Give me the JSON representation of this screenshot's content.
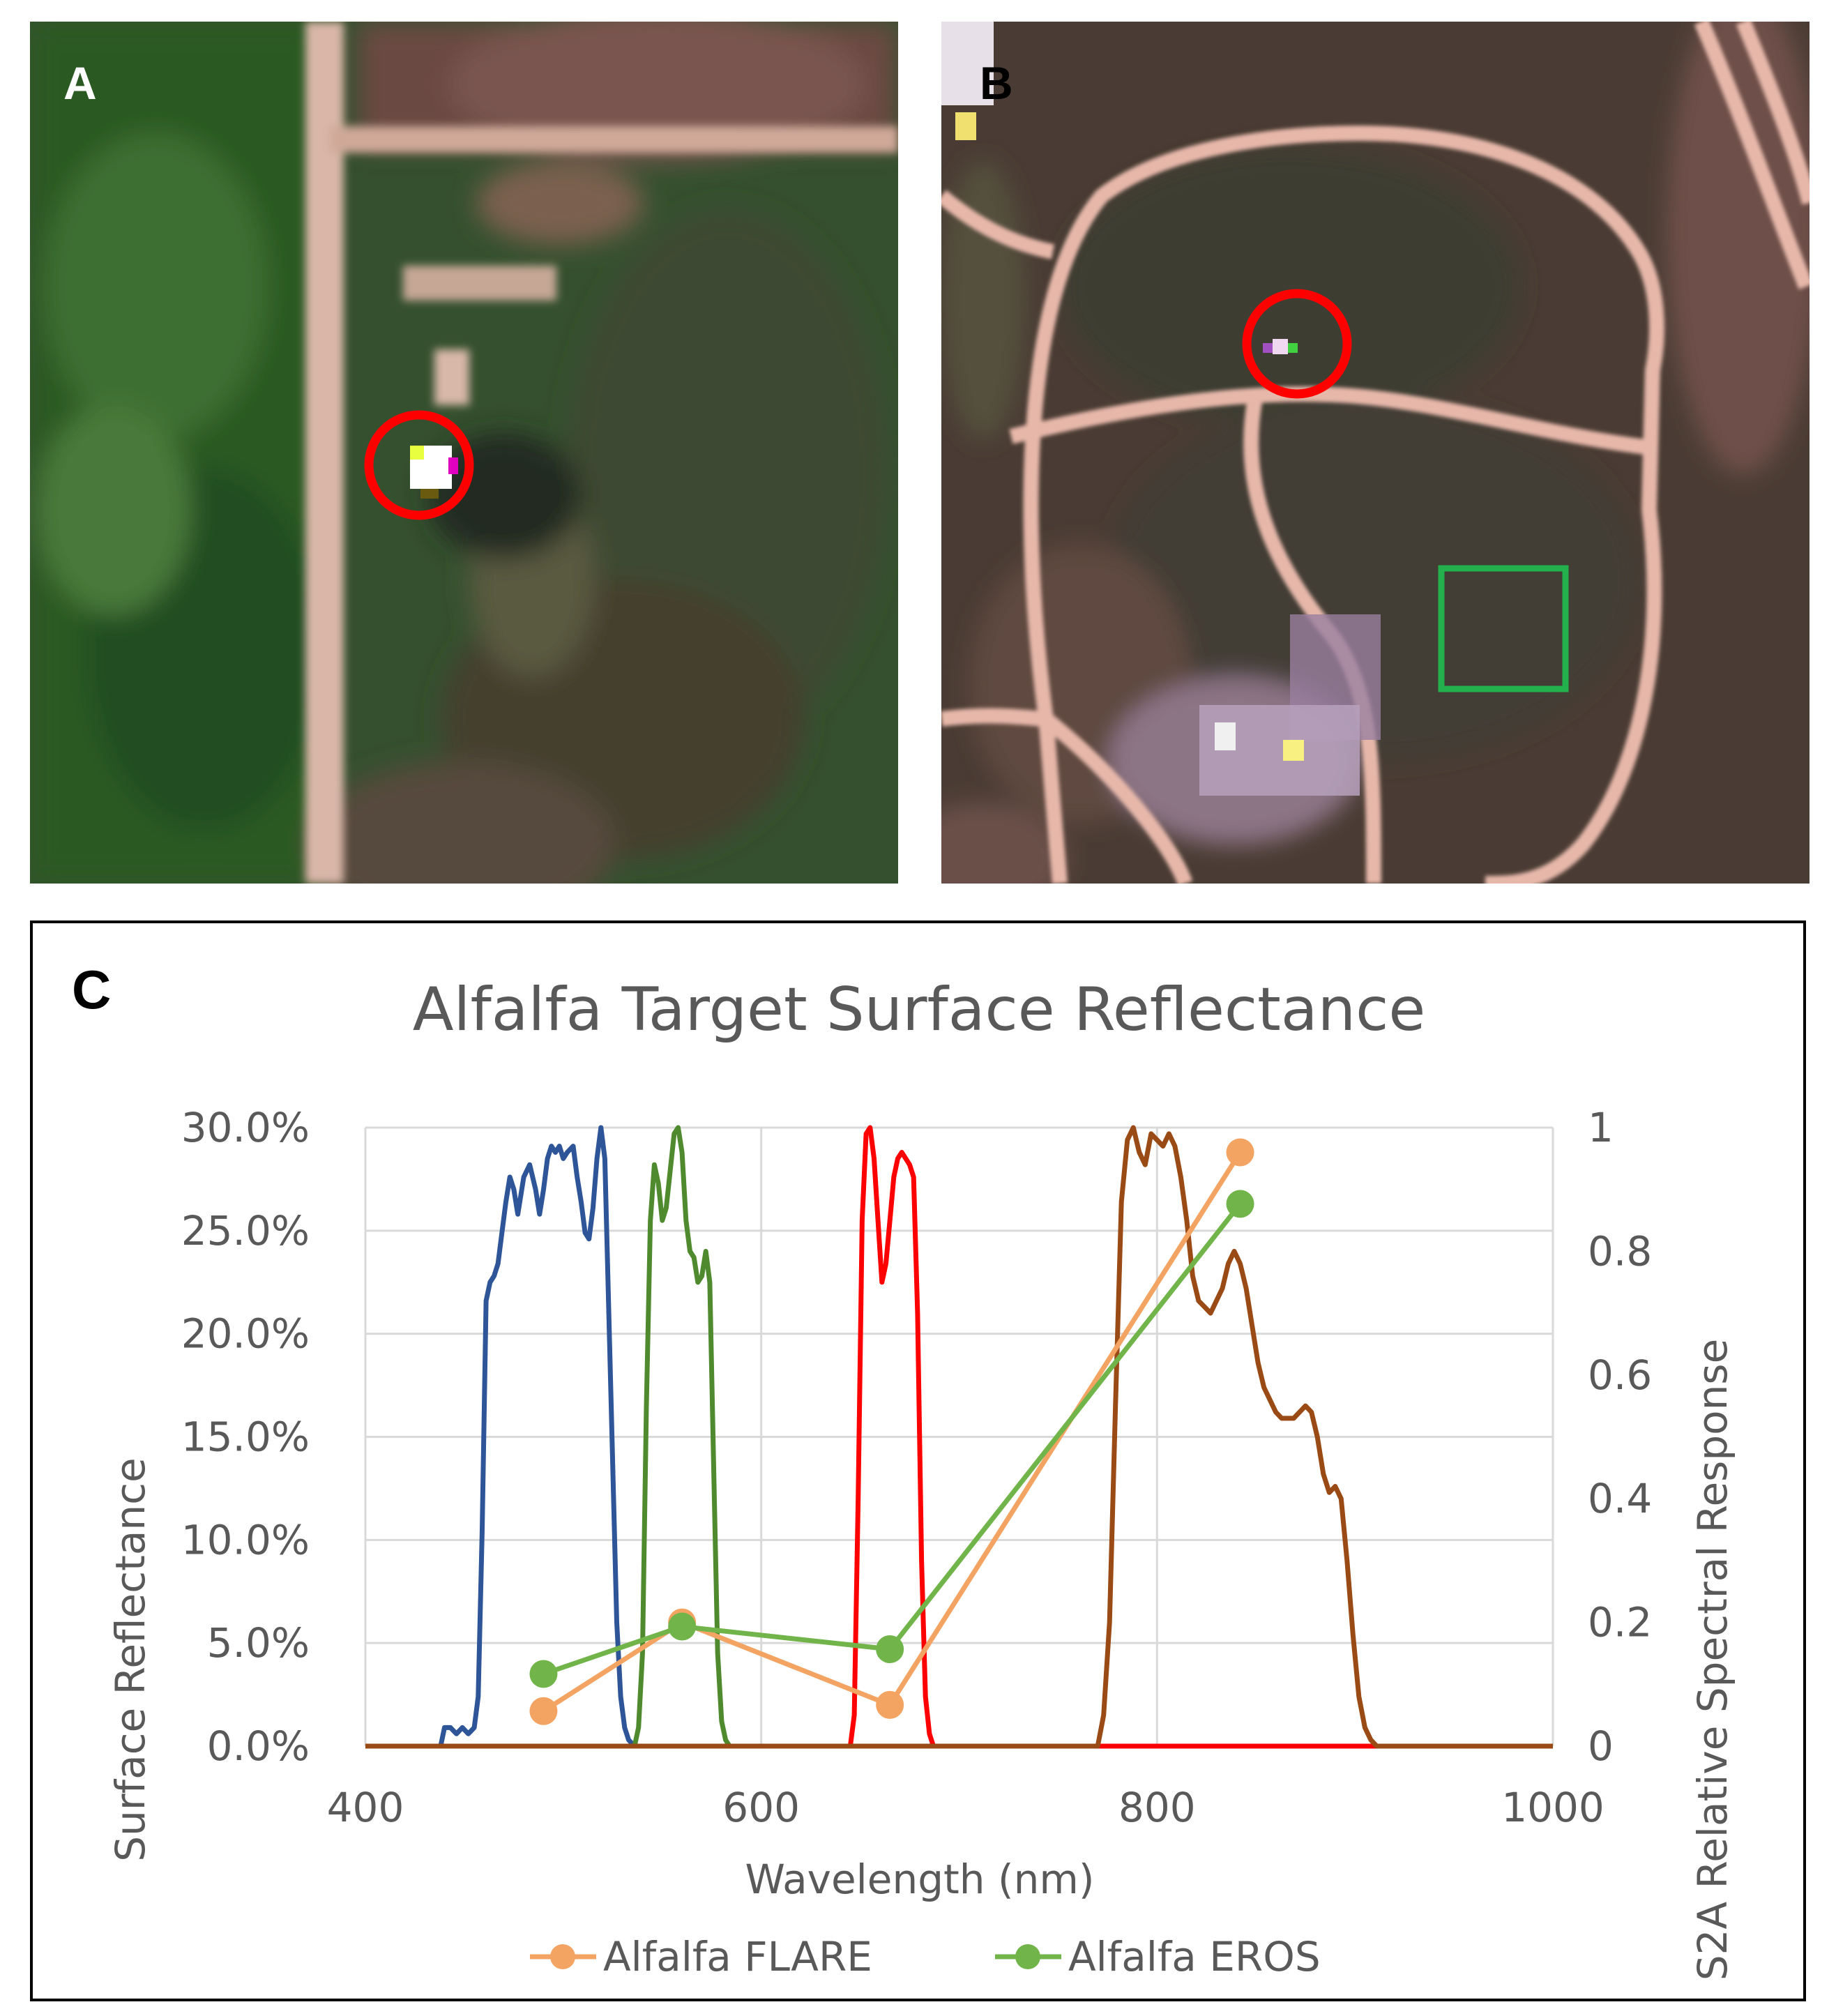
{
  "panels": {
    "a": {
      "label": "A"
    },
    "b": {
      "label": "B"
    },
    "c": {
      "label": "C"
    }
  },
  "colors": {
    "flare": "#f4a462",
    "eros": "#71b54a",
    "blue_band": "#2e5597",
    "green_band": "#4f8a2e",
    "red_band": "#ff0000",
    "nir_band": "#9a4a14",
    "target_circle": "#ff0000",
    "reference_box": "#22b14c"
  },
  "chart_data": {
    "type": "line",
    "title": "Alfalfa Target Surface Reflectance",
    "xlabel": "Wavelength (nm)",
    "ylabel": "Surface Reflectance",
    "y2label": "S2A Relative Spectral Response",
    "xlim": [
      400,
      1000
    ],
    "ylim": [
      0,
      0.3
    ],
    "y2lim": [
      0,
      1
    ],
    "x_ticks": [
      "400",
      "600",
      "800",
      "1000"
    ],
    "y_ticks": [
      "0.0%",
      "5.0%",
      "10.0%",
      "15.0%",
      "20.0%",
      "25.0%",
      "30.0%"
    ],
    "y2_ticks": [
      "0",
      "0.2",
      "0.4",
      "0.6",
      "0.8",
      "1"
    ],
    "grid": true,
    "legend": "bottom",
    "series": [
      {
        "name": "Alfalfa FLARE",
        "axis": "left",
        "x": [
          490,
          560,
          665,
          842
        ],
        "y": [
          0.017,
          0.06,
          0.02,
          0.288
        ]
      },
      {
        "name": "Alfalfa EROS",
        "axis": "left",
        "x": [
          490,
          560,
          665,
          842
        ],
        "y": [
          0.035,
          0.058,
          0.047,
          0.263
        ]
      }
    ],
    "response_curves": [
      {
        "band": "blue",
        "axis": "right",
        "x": [
          400,
          438,
          440,
          443,
          446,
          449,
          452,
          455,
          457,
          459,
          461,
          463,
          465,
          467,
          469,
          471,
          473,
          475,
          477,
          480,
          483,
          486,
          488,
          490,
          492,
          494,
          496,
          498,
          500,
          502,
          505,
          507,
          509,
          511,
          513,
          515,
          517,
          519,
          521,
          523,
          525,
          527,
          529,
          531,
          533,
          536,
          540,
          1000
        ],
        "y": [
          0,
          0,
          0.03,
          0.03,
          0.02,
          0.03,
          0.02,
          0.03,
          0.08,
          0.35,
          0.72,
          0.75,
          0.76,
          0.78,
          0.83,
          0.88,
          0.92,
          0.9,
          0.86,
          0.92,
          0.94,
          0.9,
          0.86,
          0.9,
          0.95,
          0.97,
          0.96,
          0.97,
          0.95,
          0.96,
          0.97,
          0.92,
          0.88,
          0.83,
          0.82,
          0.87,
          0.95,
          1.0,
          0.95,
          0.7,
          0.45,
          0.2,
          0.08,
          0.03,
          0.01,
          0,
          0,
          0
        ]
      },
      {
        "band": "green",
        "axis": "right",
        "x": [
          400,
          536,
          538,
          540,
          542,
          544,
          546,
          548,
          550,
          552,
          554,
          556,
          558,
          560,
          562,
          564,
          566,
          568,
          570,
          572,
          574,
          576,
          578,
          580,
          582,
          584,
          586,
          1000
        ],
        "y": [
          0,
          0,
          0.03,
          0.15,
          0.55,
          0.85,
          0.94,
          0.91,
          0.85,
          0.87,
          0.93,
          0.99,
          1.0,
          0.96,
          0.85,
          0.8,
          0.79,
          0.75,
          0.76,
          0.8,
          0.75,
          0.45,
          0.15,
          0.04,
          0.01,
          0,
          0,
          0
        ]
      },
      {
        "band": "red",
        "axis": "right",
        "x": [
          400,
          645,
          647,
          649,
          651,
          653,
          655,
          657,
          659,
          661,
          663,
          665,
          667,
          669,
          671,
          673,
          675,
          677,
          679,
          681,
          683,
          685,
          687,
          1000
        ],
        "y": [
          0,
          0,
          0.05,
          0.4,
          0.85,
          0.99,
          1.0,
          0.95,
          0.85,
          0.75,
          0.78,
          0.85,
          0.92,
          0.95,
          0.96,
          0.95,
          0.94,
          0.92,
          0.7,
          0.3,
          0.08,
          0.02,
          0,
          0
        ]
      },
      {
        "band": "nir",
        "axis": "right",
        "x": [
          400,
          770,
          773,
          776,
          779,
          782,
          785,
          788,
          791,
          794,
          797,
          800,
          803,
          806,
          809,
          812,
          815,
          818,
          821,
          824,
          827,
          830,
          833,
          836,
          839,
          842,
          845,
          848,
          851,
          854,
          857,
          860,
          863,
          866,
          869,
          872,
          875,
          878,
          881,
          884,
          887,
          890,
          893,
          896,
          899,
          902,
          905,
          908,
          911,
          1000
        ],
        "y": [
          0,
          0,
          0.05,
          0.2,
          0.55,
          0.88,
          0.98,
          1.0,
          0.96,
          0.94,
          0.99,
          0.98,
          0.97,
          0.99,
          0.97,
          0.92,
          0.85,
          0.76,
          0.72,
          0.71,
          0.7,
          0.72,
          0.74,
          0.78,
          0.8,
          0.78,
          0.74,
          0.68,
          0.62,
          0.58,
          0.56,
          0.54,
          0.53,
          0.53,
          0.53,
          0.54,
          0.55,
          0.54,
          0.5,
          0.44,
          0.41,
          0.42,
          0.4,
          0.3,
          0.18,
          0.08,
          0.03,
          0.01,
          0,
          0
        ]
      }
    ]
  },
  "legend": {
    "flare_label": "Alfalfa FLARE",
    "eros_label": "Alfalfa EROS"
  }
}
